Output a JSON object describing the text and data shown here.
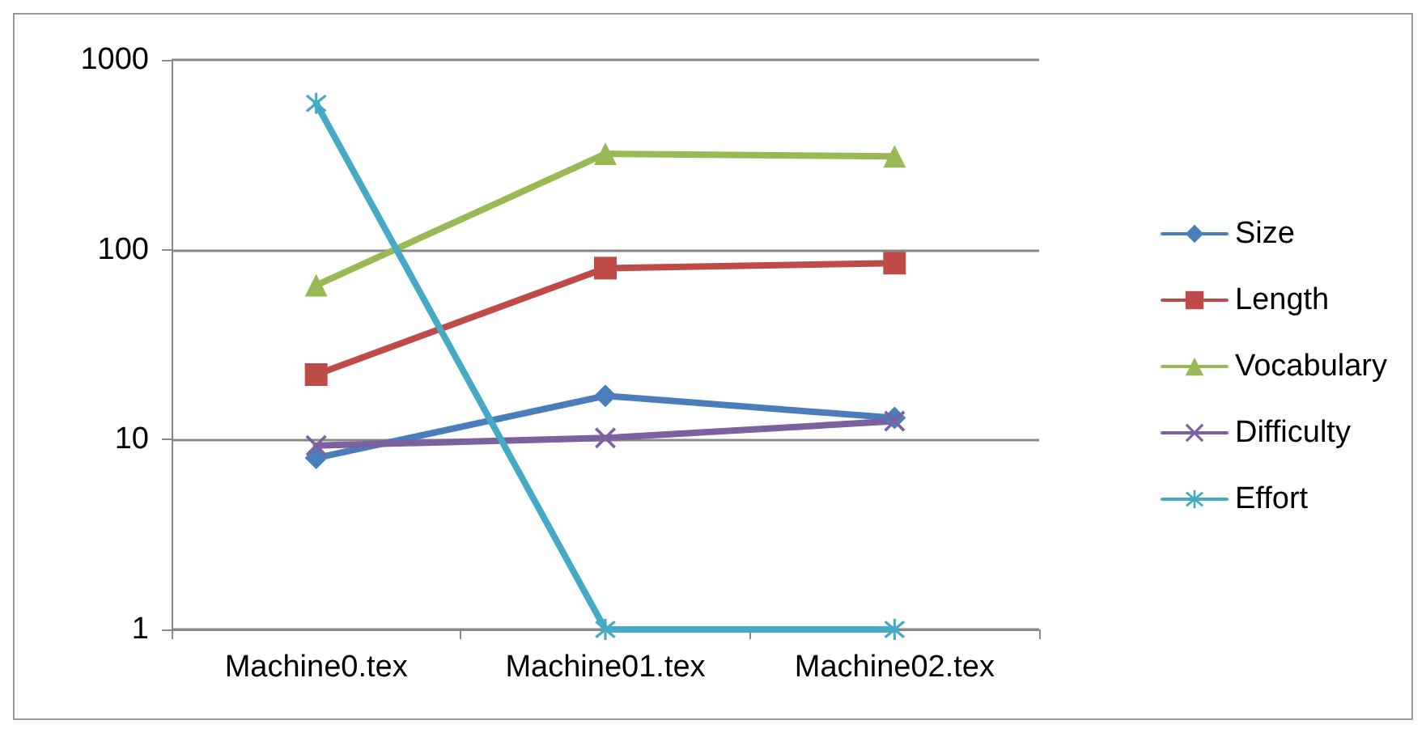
{
  "chart_data": {
    "type": "line",
    "categories": [
      "Machine0.tex",
      "Machine01.tex",
      "Machine02.tex"
    ],
    "log": true,
    "ylim": [
      1,
      1000
    ],
    "yticks": [
      1,
      10,
      100,
      1000
    ],
    "grid": "y",
    "legend": "right",
    "line_style": "solid",
    "series": [
      {
        "name": "Size",
        "color": "#4a7ebb",
        "marker": "diamond",
        "values": [
          8,
          17,
          13
        ]
      },
      {
        "name": "Length",
        "color": "#be4b48",
        "marker": "square",
        "values": [
          22,
          80,
          85
        ]
      },
      {
        "name": "Vocabulary",
        "color": "#98b954",
        "marker": "triangle",
        "values": [
          65,
          320,
          310
        ]
      },
      {
        "name": "Difficulty",
        "color": "#7d60a0",
        "marker": "cross",
        "values": [
          9.3,
          10.2,
          12.5
        ]
      },
      {
        "name": "Effort",
        "color": "#46aac5",
        "marker": "star",
        "values": [
          590,
          1,
          1
        ]
      }
    ]
  }
}
